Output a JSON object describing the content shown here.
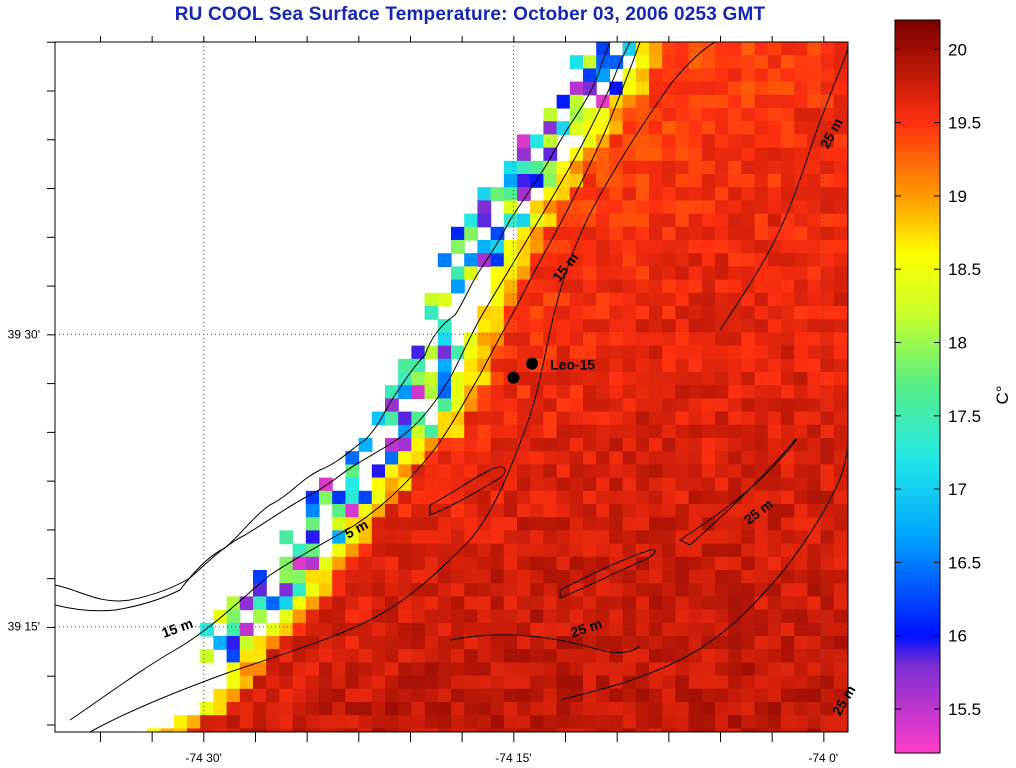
{
  "title": "RU COOL  Sea Surface Temperature:  October 03, 2006 0253 GMT",
  "map": {
    "lon_range": [
      -74.62,
      -73.98
    ],
    "lat_range": [
      39.16,
      39.75
    ],
    "lon_ticks": [
      {
        "value": -74.5,
        "label": "-74 30'"
      },
      {
        "value": -74.25,
        "label": "-74 15'"
      },
      {
        "value": -74.0,
        "label": "-74 0'"
      }
    ],
    "lat_ticks": [
      {
        "value": 39.5,
        "label": "39 30'"
      },
      {
        "value": 39.25,
        "label": "39 15'"
      }
    ],
    "grid": true,
    "land_color": "#ffffff",
    "station": {
      "name": "Leo-15",
      "points": [
        [
          -74.235,
          39.475
        ],
        [
          -74.25,
          39.463
        ]
      ]
    },
    "contour_labels": [
      {
        "text": "25 m",
        "lon": -73.99,
        "lat": 39.67
      },
      {
        "text": "15 m",
        "lon": -74.205,
        "lat": 39.555
      },
      {
        "text": "25 m",
        "lon": -74.05,
        "lat": 39.345
      },
      {
        "text": "5 m",
        "lon": -74.375,
        "lat": 39.33
      },
      {
        "text": "15 m",
        "lon": -74.52,
        "lat": 39.245
      },
      {
        "text": "25 m",
        "lon": -74.19,
        "lat": 39.245
      },
      {
        "text": "25 m",
        "lon": -73.98,
        "lat": 39.185
      }
    ]
  },
  "colorbar": {
    "min": 15.2,
    "max": 20.2,
    "ticks": [
      "15.5",
      "16",
      "16.5",
      "17",
      "17.5",
      "18",
      "18.5",
      "19",
      "19.5",
      "20"
    ],
    "tick_values": [
      15.5,
      16,
      16.5,
      17,
      17.5,
      18,
      18.5,
      19,
      19.5,
      20
    ],
    "label": "C°",
    "stops": [
      {
        "value": 15.2,
        "color": "#ff3cc8"
      },
      {
        "value": 15.8,
        "color": "#7c2fd4"
      },
      {
        "value": 16.0,
        "color": "#0010ff"
      },
      {
        "value": 16.7,
        "color": "#00a8ff"
      },
      {
        "value": 17.2,
        "color": "#22e8e8"
      },
      {
        "value": 17.7,
        "color": "#55ee88"
      },
      {
        "value": 18.2,
        "color": "#c8ff28"
      },
      {
        "value": 18.6,
        "color": "#ffff00"
      },
      {
        "value": 19.0,
        "color": "#ff9a00"
      },
      {
        "value": 19.5,
        "color": "#ff3010"
      },
      {
        "value": 20.2,
        "color": "#7a0000"
      }
    ]
  }
}
